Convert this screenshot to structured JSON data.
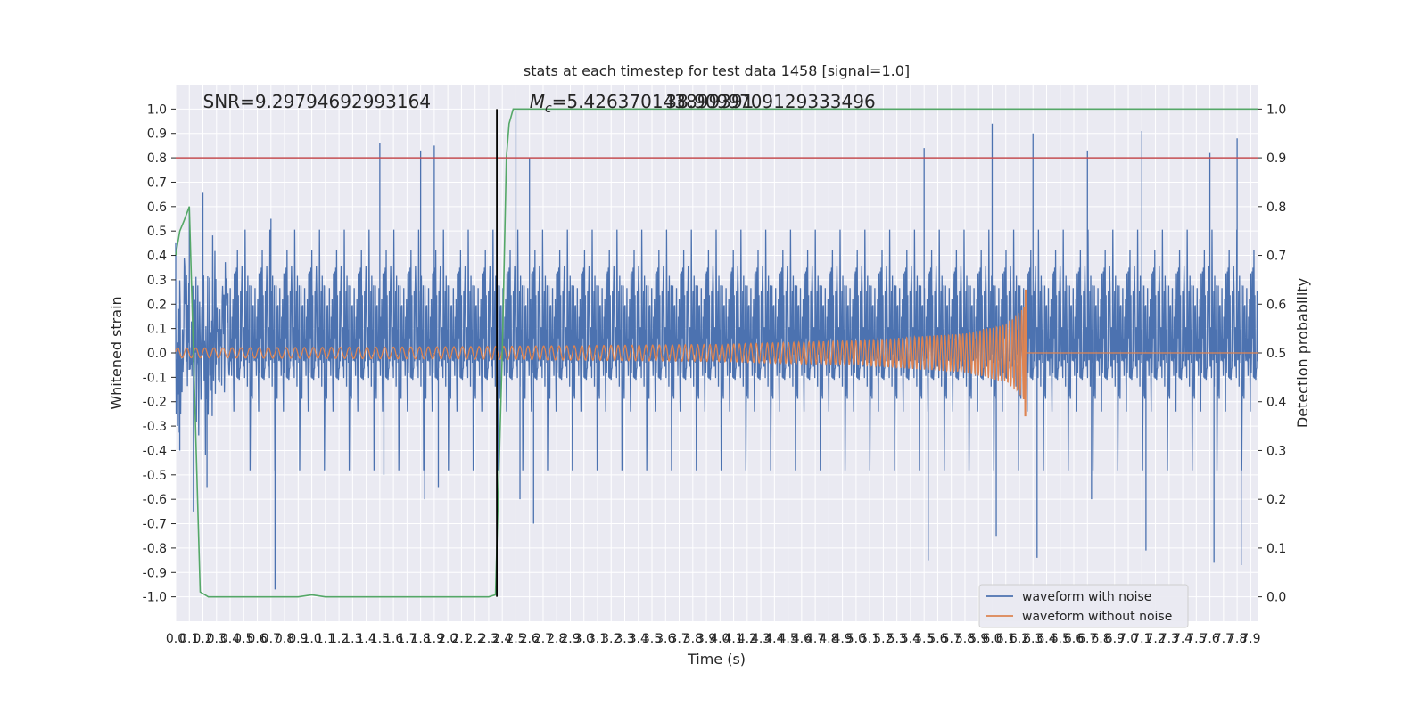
{
  "chart_data": {
    "type": "line",
    "title": "stats at each timestep for test data 1458 [signal=1.0]",
    "xlabel": "Time (s)",
    "ylabel_left": "Whitened strain",
    "ylabel_right": "Detection probability",
    "xlim": [
      0.0,
      7.95
    ],
    "ylim_left": [
      -1.1,
      1.1
    ],
    "ylim_right": [
      -0.05,
      1.05
    ],
    "grid": true,
    "x_ticks": [
      "0.0",
      "0.1",
      "0.2",
      "0.3",
      "0.4",
      "0.5",
      "0.6",
      "0.7",
      "0.8",
      "0.9",
      "1.0",
      "1.1",
      "1.2",
      "1.3",
      "1.4",
      "1.5",
      "1.6",
      "1.7",
      "1.8",
      "1.9",
      "2.0",
      "2.1",
      "2.2",
      "2.3",
      "2.4",
      "2.5",
      "2.6",
      "2.7",
      "2.8",
      "2.9",
      "3.0",
      "3.1",
      "3.2",
      "3.3",
      "3.4",
      "3.5",
      "3.6",
      "3.7",
      "3.8",
      "3.9",
      "4.0",
      "4.1",
      "4.2",
      "4.3",
      "4.4",
      "4.5",
      "4.6",
      "4.7",
      "4.8",
      "4.9",
      "5.0",
      "5.1",
      "5.2",
      "5.3",
      "5.4",
      "5.5",
      "5.6",
      "5.7",
      "5.8",
      "5.9",
      "6.0",
      "6.1",
      "6.2",
      "6.3",
      "6.4",
      "6.5",
      "6.6",
      "6.7",
      "6.8",
      "6.9",
      "7.0",
      "7.1",
      "7.2",
      "7.3",
      "7.4",
      "7.5",
      "7.6",
      "7.7",
      "7.8",
      "7.9"
    ],
    "y_ticks_left": [
      "1.0",
      "0.9",
      "0.8",
      "0.7",
      "0.6",
      "0.5",
      "0.4",
      "0.3",
      "0.2",
      "0.1",
      "0.0",
      "-0.1",
      "-0.2",
      "-0.3",
      "-0.4",
      "-0.5",
      "-0.6",
      "-0.7",
      "-0.8",
      "-0.9",
      "-1.0"
    ],
    "y_ticks_right": [
      "1.0",
      "0.9",
      "0.8",
      "0.7",
      "0.6",
      "0.5",
      "0.4",
      "0.3",
      "0.2",
      "0.1",
      "0.0"
    ],
    "annotations": {
      "snr": "SNR=9.29794692993164",
      "mc_symbol": "M",
      "mc_sub": "c",
      "mc_value": "=5.426370143899391",
      "mc_overlap": "38.9099709129333496"
    },
    "legend": {
      "position": "lower-right",
      "entries": [
        "waveform with noise",
        "waveform without noise"
      ]
    },
    "series": [
      {
        "name": "waveform with noise",
        "color": "#4c72b0",
        "axis": "left",
        "description": "noisy whitened strain, roughly symmetric noise band about 0 with spikes up to ~0.99 and down to ~-0.97",
        "envelope_points": [
          {
            "t": 0.0,
            "hi": 0.45,
            "lo": -0.4
          },
          {
            "t": 0.1,
            "hi": 0.6,
            "lo": -0.65
          },
          {
            "t": 0.2,
            "hi": 0.66,
            "lo": -0.55
          },
          {
            "t": 0.7,
            "hi": 0.55,
            "lo": -0.97
          },
          {
            "t": 1.5,
            "hi": 0.86,
            "lo": -0.5
          },
          {
            "t": 1.8,
            "hi": 0.83,
            "lo": -0.6
          },
          {
            "t": 1.9,
            "hi": 0.85,
            "lo": -0.55
          },
          {
            "t": 2.5,
            "hi": 0.99,
            "lo": -0.6
          },
          {
            "t": 2.6,
            "hi": 0.8,
            "lo": -0.7
          },
          {
            "t": 5.5,
            "hi": 0.84,
            "lo": -0.85
          },
          {
            "t": 6.0,
            "hi": 0.94,
            "lo": -0.75
          },
          {
            "t": 6.3,
            "hi": 0.9,
            "lo": -0.84
          },
          {
            "t": 6.7,
            "hi": 0.83,
            "lo": -0.6
          },
          {
            "t": 7.1,
            "hi": 0.91,
            "lo": -0.81
          },
          {
            "t": 7.6,
            "hi": 0.82,
            "lo": -0.86
          },
          {
            "t": 7.8,
            "hi": 0.88,
            "lo": -0.87
          }
        ]
      },
      {
        "name": "waveform without noise",
        "color": "#dd8452",
        "axis": "left",
        "description": "chirp signal with growing amplitude, merger near t=6.26 s",
        "envelope_points": [
          {
            "t": 0.0,
            "amp": 0.02
          },
          {
            "t": 2.0,
            "amp": 0.025
          },
          {
            "t": 4.0,
            "amp": 0.035
          },
          {
            "t": 5.0,
            "amp": 0.05
          },
          {
            "t": 5.8,
            "amp": 0.08
          },
          {
            "t": 6.1,
            "amp": 0.12
          },
          {
            "t": 6.24,
            "amp": 0.19
          },
          {
            "t": 6.26,
            "amp": 0.0
          }
        ]
      },
      {
        "name": "detection probability",
        "color": "#55a868",
        "axis": "right",
        "x": [
          0.0,
          0.03,
          0.06,
          0.1,
          0.18,
          0.24,
          0.3,
          0.9,
          1.0,
          1.1,
          1.5,
          2.0,
          2.3,
          2.35,
          2.4,
          2.43,
          2.45,
          2.48,
          7.95
        ],
        "y": [
          0.7,
          0.75,
          0.77,
          0.8,
          0.01,
          0.0,
          0.0,
          0.0,
          0.004,
          0.0,
          0.0,
          0.0,
          0.0,
          0.004,
          0.5,
          0.9,
          0.97,
          1.0,
          1.0
        ]
      }
    ],
    "reference_lines": {
      "threshold_right_axis": {
        "value": 0.9,
        "color": "#c44e52"
      },
      "signal_start_time": {
        "value": 2.36,
        "color": "#000000"
      }
    }
  }
}
